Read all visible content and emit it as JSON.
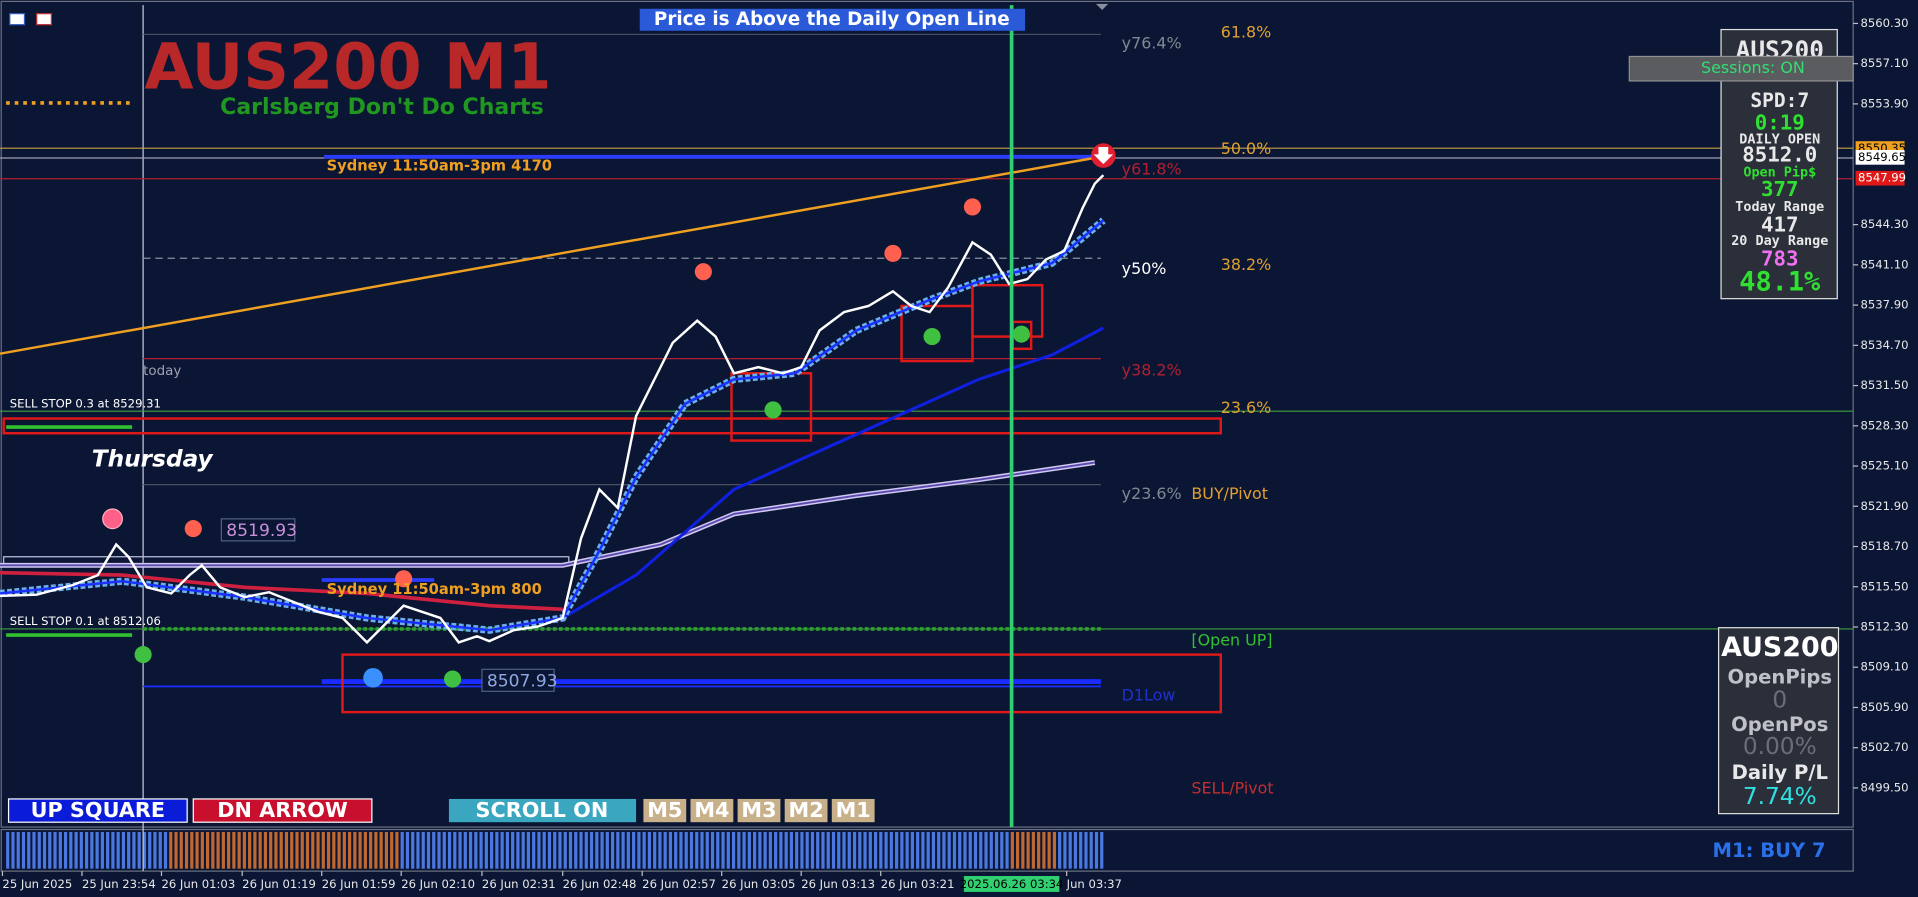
{
  "banner": "Price is Above the Daily Open Line",
  "header": {
    "symbol_title": "AUS200 M1",
    "tagline": "Carlsberg Don't Do Charts"
  },
  "fib_labels": [
    "y76.4%",
    "61.8%",
    "50.0%",
    "y61.8%",
    "y50%",
    "38.2%",
    "y38.2%",
    "23.6%",
    "y23.6%",
    "BUY/Pivot",
    "[Open UP]",
    "D1Low",
    "SELL/Pivot"
  ],
  "annotations": {
    "session_top": "Sydney 11:50am-3pm 4170",
    "session_bottom": "Sydney 11:50am-3pm 800",
    "today": "today",
    "day": "Thursday",
    "sell_stop_1": "SELL STOP 0.3 at 8529.31",
    "sell_stop_2": "SELL STOP 0.1 at 8512.06",
    "high_label": "8519.93",
    "low_label": "8507.93"
  },
  "buttons": [
    "UP SQUARE",
    "DN ARROW",
    "SCROLL ON",
    "M5",
    "M4",
    "M3",
    "M2",
    "M1"
  ],
  "sessions_button": "Sessions: ON",
  "price_axis": [
    "8560.30",
    "8557.10",
    "8553.90",
    "8544.30",
    "8541.10",
    "8537.90",
    "8534.70",
    "8531.50",
    "8528.30",
    "8525.10",
    "8521.90",
    "8518.70",
    "8515.50",
    "8512.30",
    "8509.10",
    "8505.90",
    "8502.70",
    "8499.50"
  ],
  "price_markers": [
    "8550.35",
    "8549.65",
    "8547.99"
  ],
  "time_axis": [
    "25 Jun 2025",
    "25 Jun 23:54",
    "26 Jun 01:03",
    "26 Jun 01:19",
    "26 Jun 01:59",
    "26 Jun 02:10",
    "26 Jun 02:31",
    "26 Jun 02:48",
    "26 Jun 02:57",
    "26 Jun 03:05",
    "26 Jun 03:13",
    "26 Jun 03:21",
    "Jun 03:37",
    "2025.06.26 03:34"
  ],
  "info_panel": {
    "symbol": "AUS200",
    "spread": "SPD:7",
    "timer": "0:19",
    "daily_open_label": "DAILY OPEN",
    "daily_open": "8512.0",
    "open_pips_label": "Open Pip$",
    "open_pips": "377",
    "today_range_label": "Today Range",
    "today_range": "417",
    "range20_label": "20 Day Range",
    "range20": "783",
    "ratio": "48.1%"
  },
  "position_panel": {
    "symbol": "AUS200",
    "open_pips_label": "OpenPips",
    "open_pips": "0",
    "open_pos_label": "OpenPos",
    "open_pos": "0.00%",
    "pl_label": "Daily P/L",
    "pl": "7.74%"
  },
  "signal": "M1: BUY 7"
}
